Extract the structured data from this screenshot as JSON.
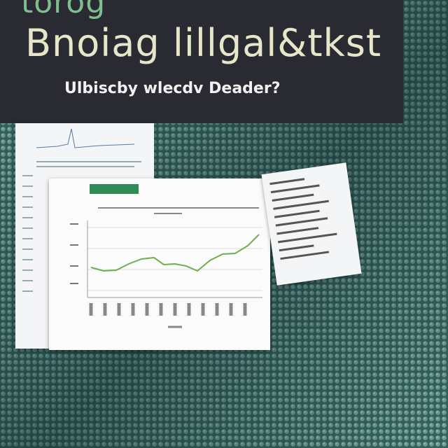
{
  "header": {
    "kicker": "torog",
    "title": "Bnoiag lillgal&tkst",
    "subtitle": "Ulbiscby wlecdv Deader?"
  }
}
